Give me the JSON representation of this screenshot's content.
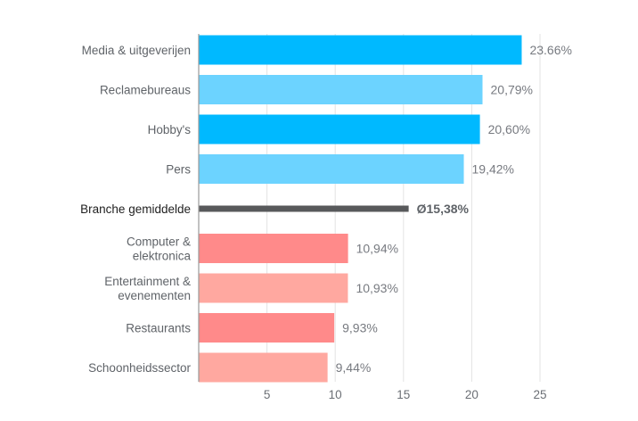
{
  "chart_data": {
    "type": "bar",
    "orientation": "horizontal",
    "title": "",
    "xlabel": "",
    "ylabel": "",
    "xlim": [
      0,
      25
    ],
    "ticks": [
      5,
      10,
      15,
      20,
      25
    ],
    "tick_labels": [
      "5",
      "10",
      "15",
      "20",
      "25"
    ],
    "grid": true,
    "categories": [
      [
        "Media & uitgeverijen"
      ],
      [
        "Reclamebureaus"
      ],
      [
        "Hobby's"
      ],
      [
        "Pers"
      ],
      [
        "Branche gemiddelde"
      ],
      [
        "Computer &",
        "elektronica"
      ],
      [
        "Entertainment &",
        "evenementen"
      ],
      [
        "Restaurants"
      ],
      [
        "Schoonheidssector"
      ]
    ],
    "values": [
      23.66,
      20.79,
      20.6,
      19.42,
      15.38,
      10.94,
      10.93,
      9.93,
      9.44
    ],
    "value_labels": [
      "23.66%",
      "20,79%",
      "20,60%",
      "19,42%",
      "Ø15,38%",
      "10,94%",
      "10,93%",
      "9,93%",
      "9,44%"
    ],
    "kinds": [
      "bar",
      "bar",
      "bar",
      "bar",
      "average",
      "bar",
      "bar",
      "bar",
      "bar"
    ],
    "colors": [
      "#00b9ff",
      "#6cd3ff",
      "#00b9ff",
      "#6cd3ff",
      "#58595b",
      "#ff8a8a",
      "#ffa8a0",
      "#ff8a8a",
      "#ffa8a0"
    ]
  }
}
